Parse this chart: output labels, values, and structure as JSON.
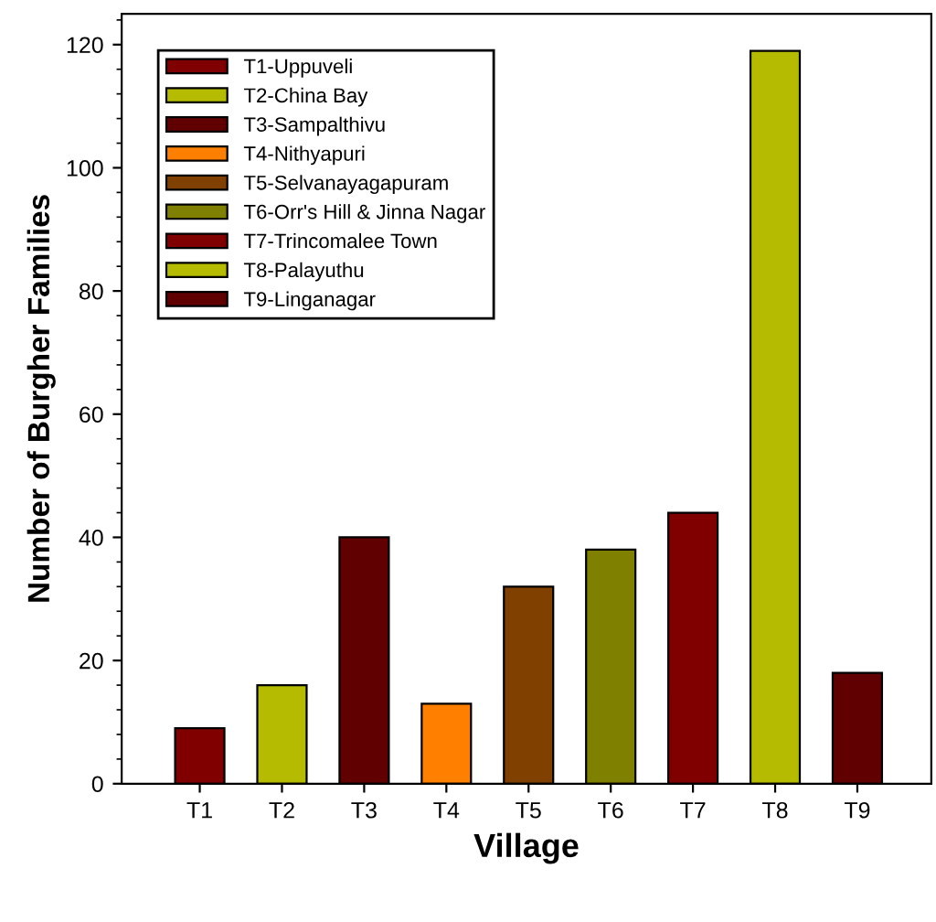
{
  "chart_data": {
    "type": "bar",
    "xlabel": "Village",
    "ylabel": "Number of Burgher Families",
    "categories": [
      "T1",
      "T2",
      "T3",
      "T4",
      "T5",
      "T6",
      "T7",
      "T8",
      "T9"
    ],
    "stacked": true,
    "series": [
      {
        "name": "T1-Uppuveli",
        "color": "#800000",
        "values": [
          9,
          null,
          null,
          null,
          null,
          null,
          null,
          null,
          null
        ]
      },
      {
        "name": "T2-China Bay",
        "color": "#b5bc00",
        "values": [
          null,
          16,
          null,
          null,
          null,
          null,
          null,
          null,
          null
        ]
      },
      {
        "name": "T3-Sampalthivu",
        "color": "#600000",
        "values": [
          null,
          null,
          40,
          null,
          null,
          null,
          null,
          null,
          null
        ]
      },
      {
        "name": "T4-Nithyapuri",
        "color": "#ff8000",
        "values": [
          null,
          null,
          null,
          13,
          null,
          null,
          null,
          null,
          null
        ]
      },
      {
        "name": "T5-Selvanayagapuram",
        "color": "#804000",
        "values": [
          null,
          null,
          null,
          null,
          32,
          null,
          null,
          null,
          null
        ]
      },
      {
        "name": "T6-Orr's Hill & Jinna Nagar",
        "color": "#808000",
        "values": [
          null,
          null,
          null,
          null,
          null,
          38,
          null,
          null,
          null
        ]
      },
      {
        "name": "T7-Trincomalee Town",
        "color": "#800000",
        "values": [
          null,
          null,
          null,
          null,
          null,
          null,
          44,
          null,
          null
        ]
      },
      {
        "name": "T8-Palayuthu",
        "color": "#b5bc00",
        "values": [
          null,
          null,
          null,
          null,
          null,
          null,
          null,
          119,
          null
        ]
      },
      {
        "name": "T9-Linganagar",
        "color": "#600000",
        "values": [
          null,
          null,
          null,
          null,
          null,
          null,
          null,
          null,
          18
        ]
      }
    ],
    "ylim": [
      0,
      125
    ],
    "yticks": [
      0,
      20,
      40,
      60,
      80,
      100,
      120
    ],
    "legend": "top left",
    "grid": false
  }
}
